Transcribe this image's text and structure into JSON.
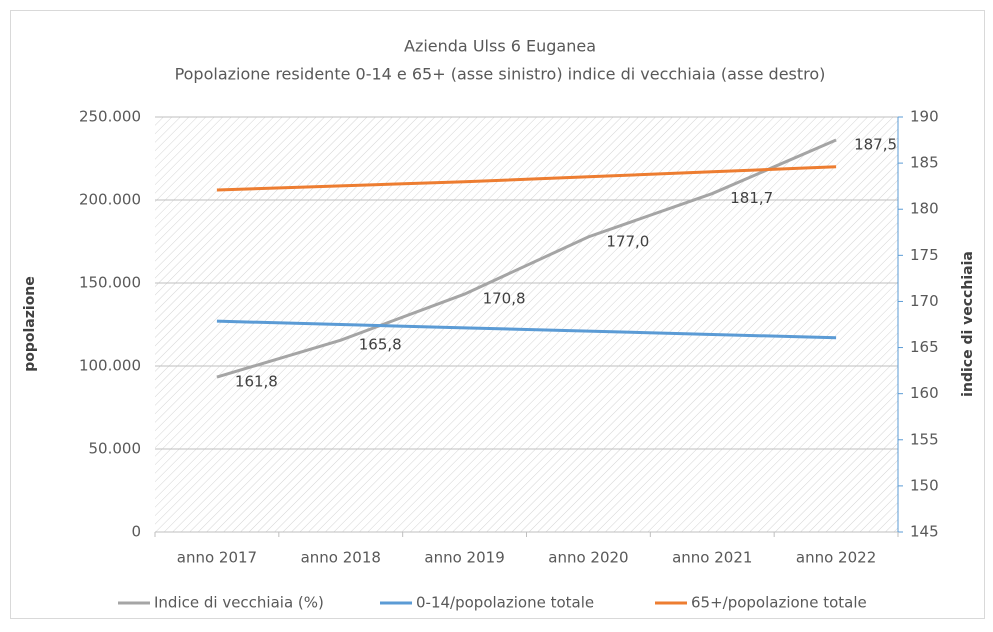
{
  "chart_data": {
    "type": "line",
    "title": "Azienda Ulss 6 Euganea",
    "subtitle": "Popolazione residente 0-14 e 65+ (asse sinistro) indice di vecchiaia (asse destro)",
    "y_label": "popolazione",
    "y2_label": "indice di vecchiaia",
    "categories": [
      "anno 2017",
      "anno 2018",
      "anno 2019",
      "anno 2020",
      "anno 2021",
      "anno 2022"
    ],
    "series": [
      {
        "name": "Indice di vecchiaia (%)",
        "color": "#a5a5a5",
        "axis": "y2",
        "values": [
          161.8,
          165.8,
          170.8,
          177.0,
          181.7,
          187.5
        ],
        "value_labels": [
          "161,8",
          "165,8",
          "170,8",
          "177,0",
          "181,7",
          "187,5"
        ]
      },
      {
        "name": "0-14/popolazione totale",
        "color": "#5b9bd5",
        "values": [
          127000,
          125000,
          123000,
          121000,
          119000,
          117000
        ]
      },
      {
        "name": "65+/popolazione totale",
        "color": "#ed7d31",
        "values": [
          206000,
          208500,
          211000,
          214000,
          217000,
          220000
        ]
      }
    ],
    "ylim": [
      0,
      250000
    ],
    "yticks": [
      0,
      {
        "value": 50000,
        "label": "50.000"
      },
      {
        "value": 100000,
        "label": "100.000"
      },
      {
        "value": 150000,
        "label": "150.000"
      },
      {
        "value": 200000,
        "label": "200.000"
      },
      {
        "value": 250000,
        "label": "250.000"
      }
    ],
    "y2lim": [
      145,
      190
    ],
    "y2ticks": [
      145,
      150,
      155,
      160,
      165,
      170,
      175,
      180,
      185,
      190
    ],
    "grid": true,
    "legend": "bottom"
  }
}
